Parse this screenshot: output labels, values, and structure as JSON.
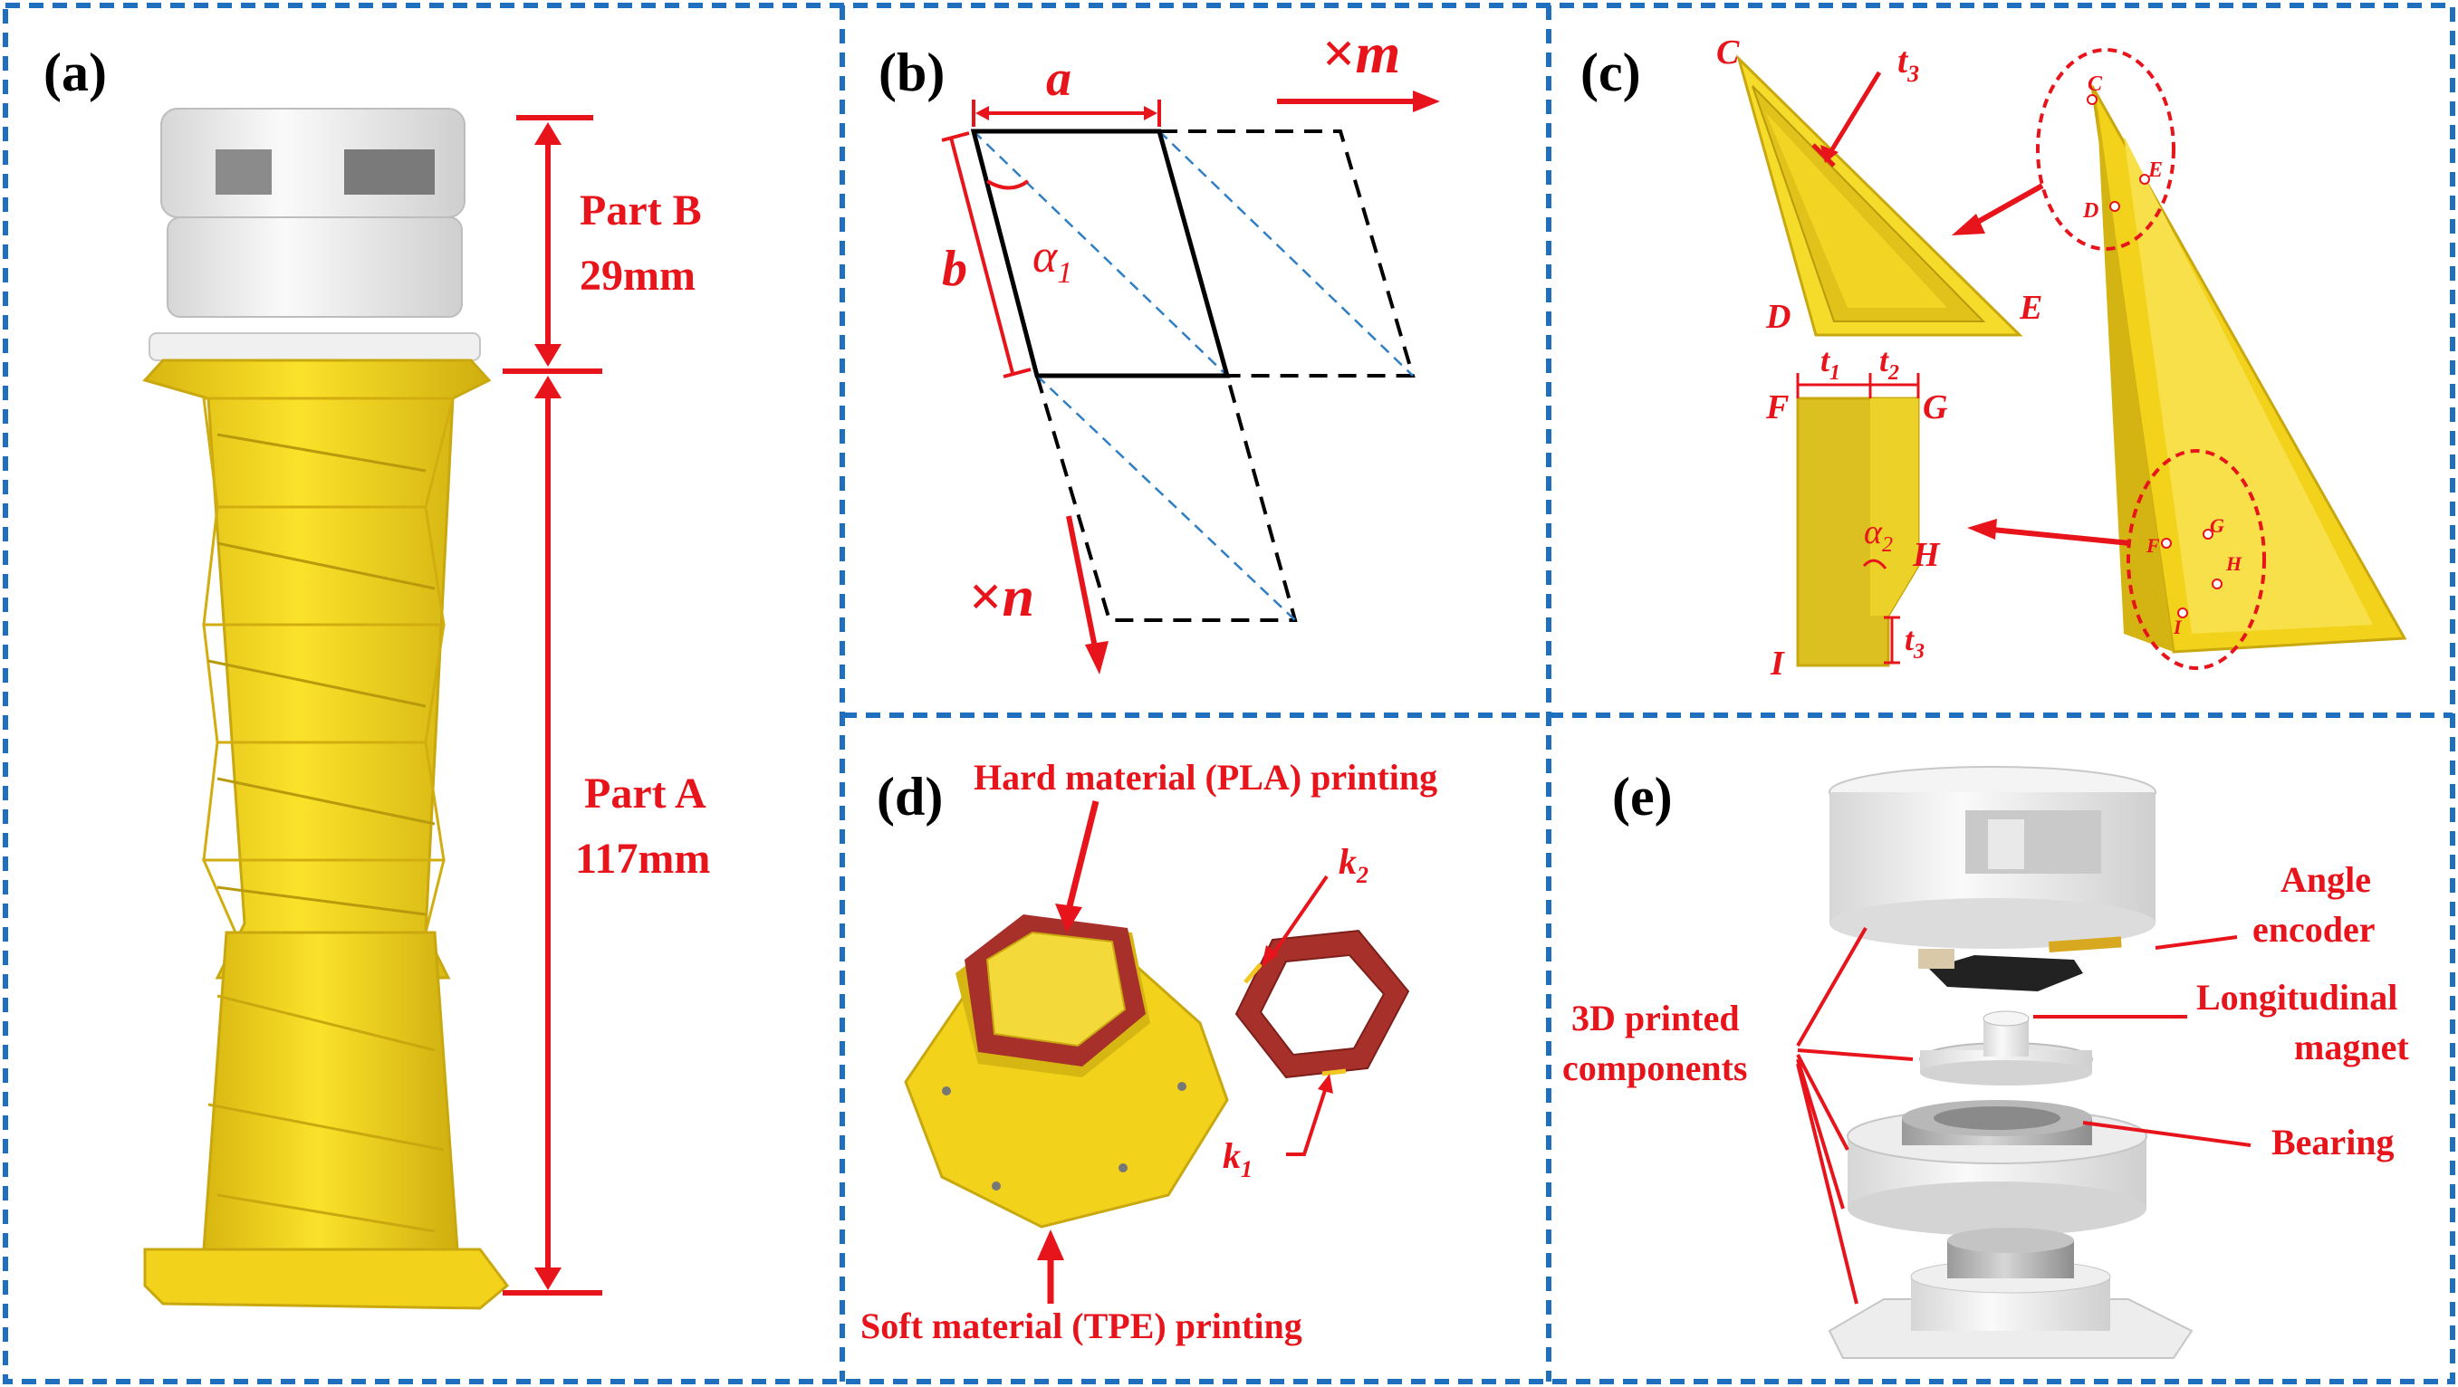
{
  "panels": {
    "a": {
      "label": "(a)",
      "part_b": {
        "name": "Part B",
        "size": "29mm"
      },
      "part_a": {
        "name": "Part A",
        "size": "117mm"
      }
    },
    "b": {
      "label": "(b)",
      "a": "a",
      "b": "b",
      "alpha_sym": "α",
      "alpha_sub": "1",
      "m_times": "×",
      "m": "m",
      "n_times": "×",
      "n": "n"
    },
    "c": {
      "label": "(c)",
      "C": "C",
      "D": "D",
      "E": "E",
      "F": "F",
      "G": "G",
      "H": "H",
      "I": "I",
      "t": "t",
      "t1_sub": "1",
      "t2_sub": "2",
      "t3_sub": "3",
      "alpha_sym": "α",
      "alpha_sub": "2",
      "mini": {
        "C": "C",
        "D": "D",
        "E": "E",
        "F": "F",
        "G": "G",
        "H": "H",
        "I": "I"
      }
    },
    "d": {
      "label": "(d)",
      "hard": "Hard material (PLA) printing",
      "soft": "Soft material (TPE) printing",
      "k": "k",
      "k1_sub": "1",
      "k2_sub": "2"
    },
    "e": {
      "label": "(e)",
      "angle_encoder": [
        "Angle",
        "encoder"
      ],
      "longitudinal_magnet": [
        "Longitudinal",
        "magnet"
      ],
      "bearing": "Bearing",
      "printed_components": [
        "3D printed",
        "components"
      ]
    }
  },
  "colors": {
    "border": "#1f6fbf",
    "annotation": "#e8141b",
    "yellow": "#f2d21b",
    "yellow_dark": "#c9a80f",
    "hard_material": "#a8302a",
    "white_part": "#ececec"
  }
}
